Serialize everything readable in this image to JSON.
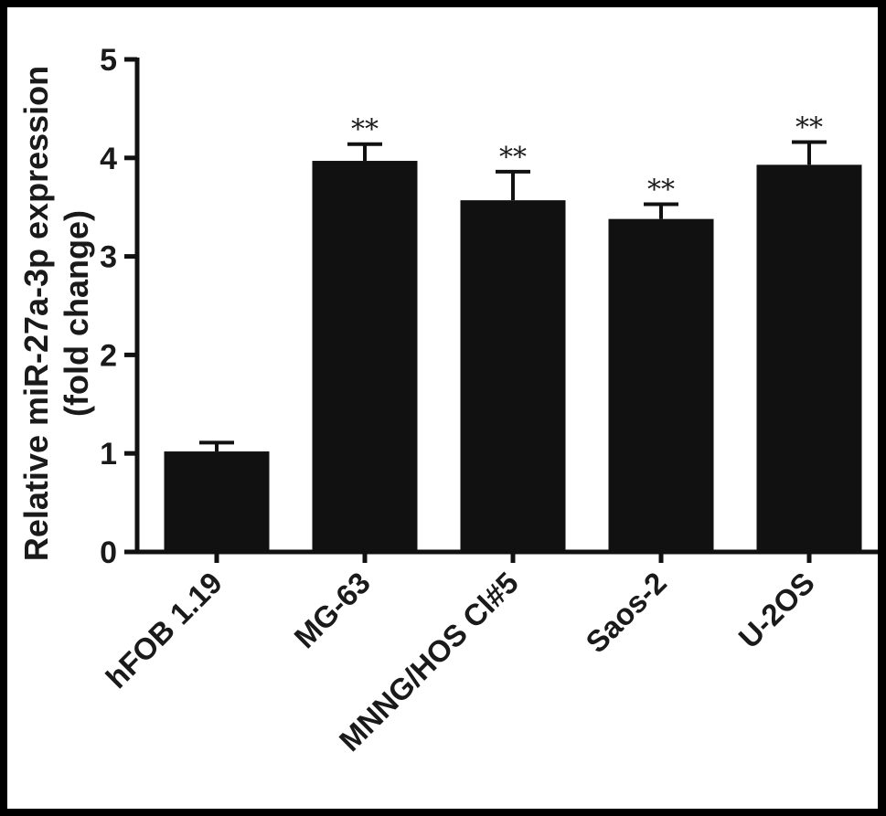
{
  "chart_data": {
    "type": "bar",
    "categories": [
      "hFOB 1.19",
      "MG-63",
      "MNNG/HOS Cl#5",
      "Saos-2",
      "U-2OS"
    ],
    "values": [
      1.02,
      3.97,
      3.57,
      3.38,
      3.93
    ],
    "errors": [
      0.09,
      0.17,
      0.29,
      0.15,
      0.23
    ],
    "significance": [
      "",
      "**",
      "**",
      "**",
      "**"
    ],
    "ylabel_line1": "Relative miR-27a-3p expression",
    "ylabel_line2": "(fold change)",
    "ylim": [
      0,
      5
    ],
    "yticks": [
      "0",
      "1",
      "2",
      "3",
      "4",
      "5"
    ],
    "bar_color": "#111111",
    "grid": false,
    "legend": "none"
  }
}
